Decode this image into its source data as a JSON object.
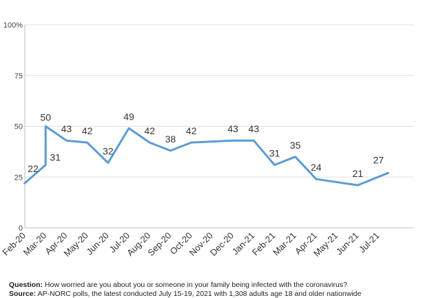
{
  "chart_data": {
    "type": "line",
    "ylim": [
      0,
      100
    ],
    "y_ticks": [
      "0",
      "25",
      "50",
      "75",
      "100%"
    ],
    "y_tick_values": [
      0,
      25,
      50,
      75,
      100
    ],
    "x_tick_labels": [
      "Feb-20",
      "Mar-20",
      "Apr-20",
      "May-20",
      "Jun-20",
      "Jul-20",
      "Aug-20",
      "Sep-20",
      "Oct-20",
      "Nov-20",
      "Dec-20",
      "Jan-21",
      "Feb-21",
      "Mar-21",
      "Apr-21",
      "May-21",
      "Jun-21",
      "Jul-21"
    ],
    "grid": "horizontal",
    "color": "#5b9bd5",
    "series": [
      {
        "points": [
          {
            "x": "2020-02-01",
            "y": 22,
            "label": "22"
          },
          {
            "x": "2020-03-01",
            "y": 31,
            "label": "31"
          },
          {
            "x": "2020-03-01",
            "y": 50,
            "label": "50"
          },
          {
            "x": "2020-04-01",
            "y": 43,
            "label": "43"
          },
          {
            "x": "2020-05-01",
            "y": 42,
            "label": "42"
          },
          {
            "x": "2020-06-01",
            "y": 32,
            "label": "32"
          },
          {
            "x": "2020-07-01",
            "y": 49,
            "label": "49"
          },
          {
            "x": "2020-08-01",
            "y": 42,
            "label": "42"
          },
          {
            "x": "2020-09-01",
            "y": 38,
            "label": "38"
          },
          {
            "x": "2020-10-01",
            "y": 42,
            "label": "42"
          },
          {
            "x": "2020-12-01",
            "y": 43,
            "label": "43"
          },
          {
            "x": "2021-01-01",
            "y": 43,
            "label": "43"
          },
          {
            "x": "2021-02-01",
            "y": 31,
            "label": "31"
          },
          {
            "x": "2021-03-01",
            "y": 35,
            "label": "35"
          },
          {
            "x": "2021-04-01",
            "y": 24,
            "label": "24"
          },
          {
            "x": "2021-06-01",
            "y": 21,
            "label": "21"
          },
          {
            "x": "2021-07-15",
            "y": 27,
            "label": "27"
          }
        ]
      }
    ]
  },
  "footer": {
    "question_label": "Question:",
    "question_text": "How worried are you about you or someone in your family being infected with the coronavirus?",
    "source_label": "Source:",
    "source_text": "AP-NORC polls, the latest conducted  July 15-19, 2021 with 1,308 adults age 18 and older nationwide"
  }
}
